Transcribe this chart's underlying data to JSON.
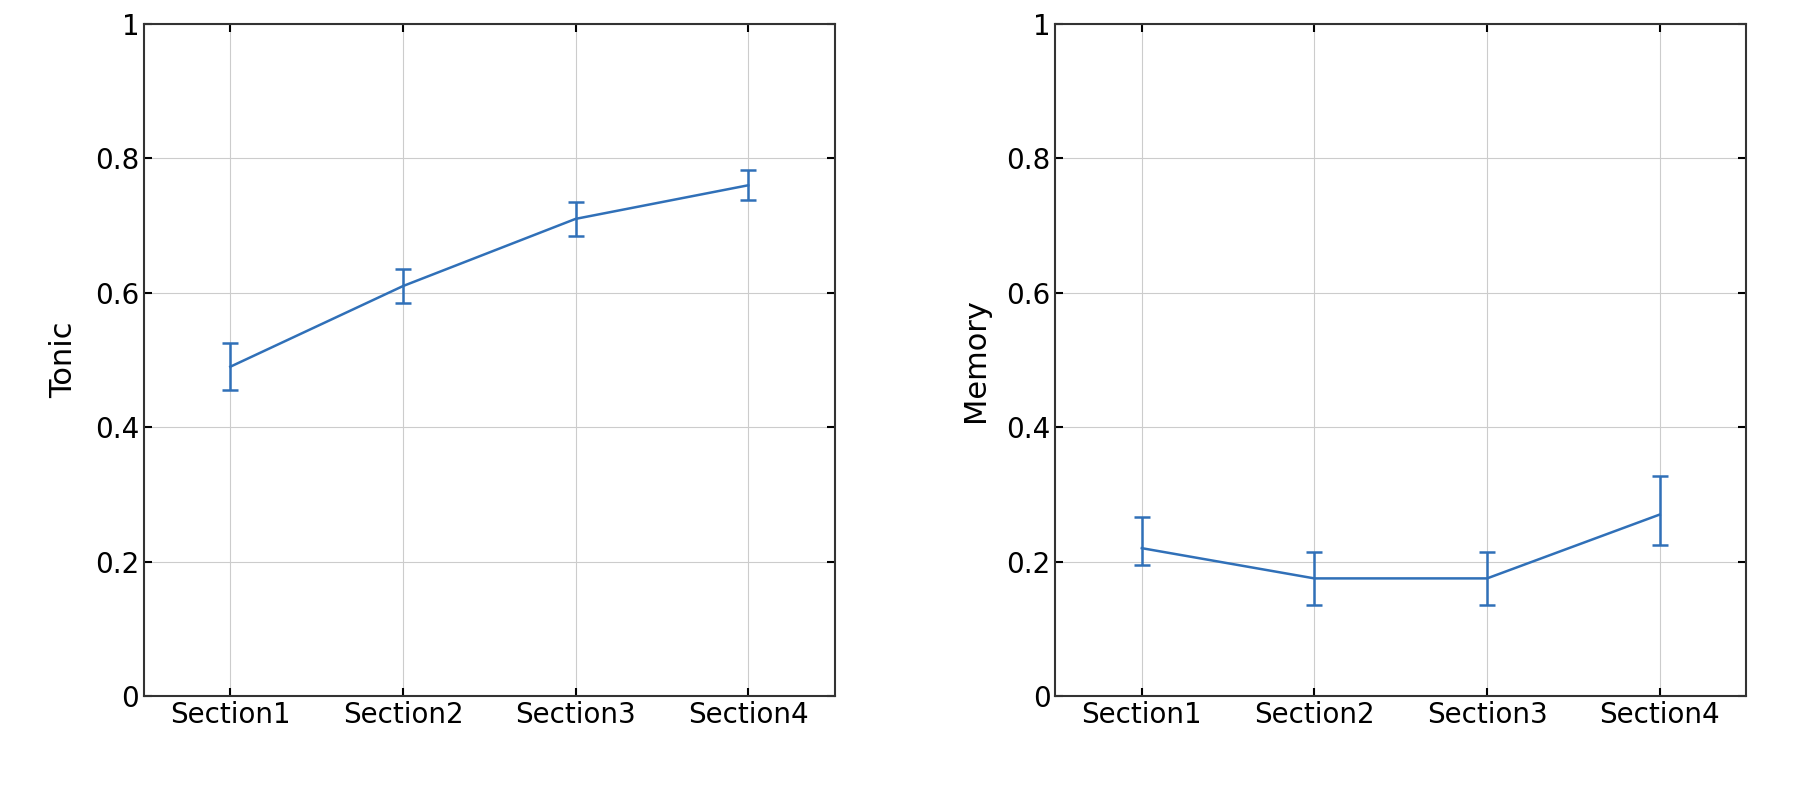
{
  "categories": [
    "Section1",
    "Section2",
    "Section3",
    "Section4"
  ],
  "tonic": {
    "ylabel": "Tonic",
    "values": [
      0.49,
      0.61,
      0.71,
      0.76
    ],
    "errors": [
      0.035,
      0.025,
      0.025,
      0.022
    ]
  },
  "memory": {
    "ylabel": "Memory",
    "values": [
      0.22,
      0.175,
      0.175,
      0.27
    ],
    "errors_upper": [
      0.047,
      0.04,
      0.04,
      0.058
    ],
    "errors_lower": [
      0.025,
      0.04,
      0.04,
      0.045
    ]
  },
  "line_color": "#3070b8",
  "ylim": [
    0,
    1
  ],
  "yticks": [
    0,
    0.2,
    0.4,
    0.6,
    0.8,
    1.0
  ],
  "ytick_labels": [
    "0",
    "0.2",
    "0.4",
    "0.6",
    "0.8",
    "1"
  ],
  "grid_color": "#cccccc",
  "background_color": "#ffffff",
  "tick_fontsize": 20,
  "label_fontsize": 22,
  "spine_color": "#333333",
  "spine_linewidth": 1.5
}
